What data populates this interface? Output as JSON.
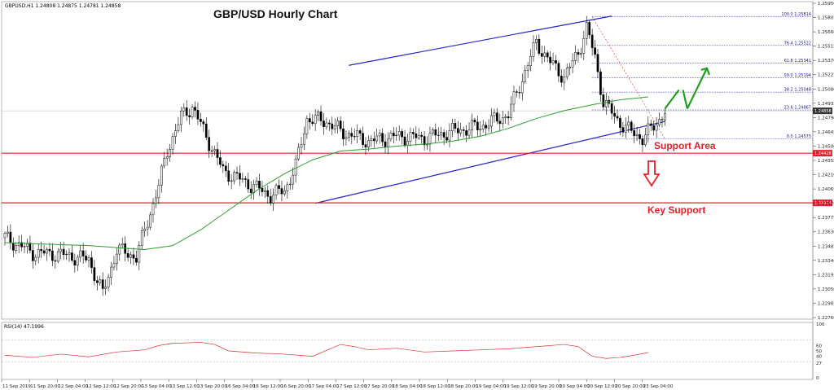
{
  "header": {
    "symbol_info": "GBPUSD,H1  1.24808 1.24875 1.24781 1.24858",
    "title": "GBP/USD Hourly Chart",
    "rsi_label": "RSI(14) 47.1996"
  },
  "annotations": {
    "support_area": "Support Area",
    "key_support": "Key Support"
  },
  "chart_data": {
    "type": "candlestick",
    "title": "GBP/USD Hourly Chart",
    "ylim": [
      1.2276,
      1.2595
    ],
    "y_ticks": [
      "1.25950",
      "1.25805",
      "1.25660",
      "1.25515",
      "1.25370",
      "1.25225",
      "1.25080",
      "1.24935",
      "1.24790",
      "1.24645",
      "1.24500",
      "1.24355",
      "1.24210",
      "1.24065",
      "1.23920",
      "1.23775",
      "1.23630",
      "1.23485",
      "1.23340",
      "1.23195",
      "1.23050",
      "1.22905",
      "1.22760"
    ],
    "x_ticks": [
      "11 Sep 2019",
      "11 Sep 20:00",
      "12 Sep 04:00",
      "12 Sep 12:00",
      "12 Sep 20:00",
      "13 Sep 04:00",
      "13 Sep 12:00",
      "13 Sep 20:00",
      "16 Sep 04:00",
      "16 Sep 12:00",
      "16 Sep 20:00",
      "17 Sep 04:00",
      "17 Sep 12:00",
      "17 Sep 20:00",
      "18 Sep 04:00",
      "18 Sep 12:00",
      "18 Sep 20:00",
      "19 Sep 04:00",
      "19 Sep 12:00",
      "19 Sep 20:00",
      "20 Sep 04:00",
      "20 Sep 12:00",
      "20 Sep 20:00",
      "23 Sep 04:00"
    ],
    "current_price": "1.24858",
    "support_levels": [
      {
        "label": "1.24428",
        "value": 1.24428,
        "color": "#e0202a"
      },
      {
        "label": "1.23924",
        "value": 1.23924,
        "color": "#e0202a"
      }
    ],
    "fibonacci": [
      {
        "label": "100.0  1.25814",
        "value": 1.25814
      },
      {
        "label": "76.4  1.25522",
        "value": 1.25522
      },
      {
        "label": "61.8  1.25341",
        "value": 1.25341
      },
      {
        "label": "50.0  1.25194",
        "value": 1.25194
      },
      {
        "label": "38.2  1.25048",
        "value": 1.25048
      },
      {
        "label": "23.6  1.24867",
        "value": 1.24867
      },
      {
        "label": "0.0  1.24575",
        "value": 1.24575
      }
    ],
    "channel": {
      "upper": [
        [
          123,
          1.2532
        ],
        [
          217,
          1.2582
        ]
      ],
      "lower": [
        [
          111,
          1.2392
        ],
        [
          236,
          1.2475
        ]
      ]
    },
    "moving_average": [
      [
        0,
        1.2352
      ],
      [
        10,
        1.2351
      ],
      [
        20,
        1.235
      ],
      [
        30,
        1.2349
      ],
      [
        40,
        1.2347
      ],
      [
        50,
        1.2345
      ],
      [
        60,
        1.2349
      ],
      [
        70,
        1.2365
      ],
      [
        80,
        1.2385
      ],
      [
        90,
        1.2405
      ],
      [
        100,
        1.2422
      ],
      [
        110,
        1.2436
      ],
      [
        120,
        1.2445
      ],
      [
        125,
        1.2446
      ],
      [
        130,
        1.2447
      ],
      [
        140,
        1.245
      ],
      [
        150,
        1.2452
      ],
      [
        160,
        1.2455
      ],
      [
        170,
        1.246
      ],
      [
        180,
        1.2468
      ],
      [
        190,
        1.2478
      ],
      [
        200,
        1.2486
      ],
      [
        210,
        1.2492
      ],
      [
        220,
        1.2497
      ],
      [
        230,
        1.25
      ]
    ],
    "rsi": {
      "label": "RSI(14) 47.1996",
      "ylim": [
        0,
        100
      ],
      "levels": [
        30,
        70
      ],
      "y_ticks": [
        "100",
        "60",
        "50",
        "40",
        "27",
        "0"
      ],
      "values": [
        [
          0,
          42
        ],
        [
          10,
          38
        ],
        [
          20,
          44
        ],
        [
          30,
          39
        ],
        [
          40,
          48
        ],
        [
          50,
          52
        ],
        [
          55,
          60
        ],
        [
          60,
          64
        ],
        [
          70,
          66
        ],
        [
          75,
          62
        ],
        [
          80,
          50
        ],
        [
          90,
          46
        ],
        [
          100,
          44
        ],
        [
          110,
          40
        ],
        [
          120,
          62
        ],
        [
          125,
          58
        ],
        [
          130,
          52
        ],
        [
          140,
          55
        ],
        [
          150,
          48
        ],
        [
          160,
          50
        ],
        [
          170,
          52
        ],
        [
          180,
          54
        ],
        [
          190,
          58
        ],
        [
          200,
          62
        ],
        [
          205,
          58
        ],
        [
          210,
          40
        ],
        [
          215,
          36
        ],
        [
          220,
          38
        ],
        [
          225,
          42
        ],
        [
          230,
          47
        ]
      ]
    }
  }
}
